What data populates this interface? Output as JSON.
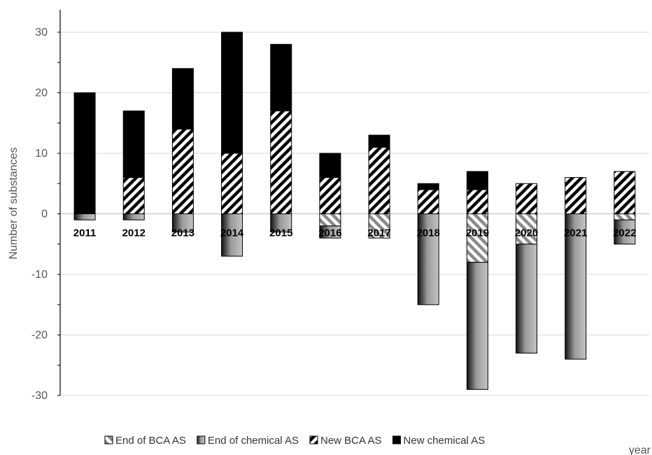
{
  "chart_data": {
    "type": "bar",
    "stacked": true,
    "title": "",
    "xlabel": "year",
    "ylabel": "Number of substances",
    "ylim": [
      -30,
      30
    ],
    "y_ticks": [
      30,
      20,
      10,
      0,
      -10,
      -20,
      -30
    ],
    "categories": [
      "2011",
      "2012",
      "2013",
      "2014",
      "2015",
      "2016",
      "2017",
      "2018",
      "2019",
      "2020",
      "2021",
      "2022"
    ],
    "grid": true,
    "legend_position": "bottom",
    "series": [
      {
        "name": "End of BCA AS",
        "values": [
          0,
          0,
          0,
          0,
          0,
          -2,
          -4,
          0,
          -8,
          -5,
          0,
          -1
        ],
        "pattern": "diagonal-hatch-light"
      },
      {
        "name": "End of chemical AS",
        "values": [
          -1,
          -1,
          -3,
          -7,
          -3,
          -2,
          0,
          -15,
          -21,
          -18,
          -24,
          -4
        ],
        "pattern": "gray-gradient"
      },
      {
        "name": "New BCA AS",
        "values": [
          0,
          6,
          14,
          10,
          17,
          6,
          11,
          4,
          4,
          5,
          6,
          7
        ],
        "pattern": "diagonal-hatch-dark"
      },
      {
        "name": "New chemical AS",
        "values": [
          20,
          11,
          10,
          20,
          11,
          4,
          2,
          1,
          3,
          0,
          0,
          0
        ],
        "pattern": "solid-black"
      }
    ]
  }
}
